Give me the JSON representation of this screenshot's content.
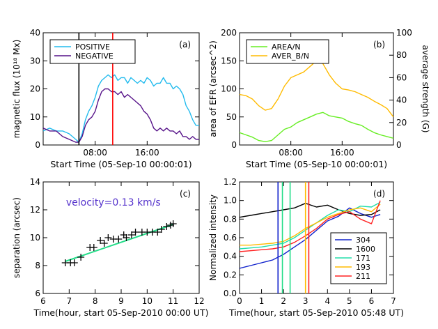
{
  "chart_data": [
    {
      "id": "a",
      "type": "line",
      "panel_label": "(a)",
      "xlabel": "Start Time (05-Sep-10 00:00:01)",
      "ylabel": "magnetic flux (10¹⁸ Mx)",
      "x_unit": "hours since 05-Sep-10 00:00:01",
      "xlim": [
        0,
        24
      ],
      "ylim": [
        0,
        40
      ],
      "xticks": [
        {
          "v": 8,
          "label": "08:00"
        },
        {
          "v": 16,
          "label": "16:00"
        }
      ],
      "yticks": [
        0,
        10,
        20,
        30,
        40
      ],
      "legend": "top-left",
      "series": [
        {
          "name": "POSITIVE",
          "color": "#22bbee",
          "x": [
            0,
            1,
            2,
            3,
            4,
            5,
            5.5,
            6,
            6.5,
            7,
            7.5,
            8,
            8.5,
            9,
            9.5,
            10,
            10.5,
            11,
            11.5,
            12,
            12.5,
            13,
            13.5,
            14,
            14.5,
            15,
            15.5,
            16,
            16.5,
            17,
            17.5,
            18,
            18.5,
            19,
            19.5,
            20,
            20.5,
            21,
            21.5,
            22,
            22.5,
            23,
            23.5,
            24
          ],
          "y": [
            5,
            6,
            5,
            5,
            4,
            2,
            1,
            4,
            9,
            12,
            14,
            17,
            21,
            23,
            24,
            25,
            24,
            25,
            23,
            24,
            24,
            22,
            24,
            23,
            22,
            23,
            22,
            24,
            23,
            21,
            22,
            22,
            24,
            22,
            22,
            20,
            21,
            20,
            18,
            14,
            12,
            9,
            7,
            7
          ]
        },
        {
          "name": "NEGATIVE",
          "color": "#551188",
          "x": [
            0,
            1,
            2,
            3,
            4,
            5,
            5.5,
            6,
            6.5,
            7,
            7.5,
            8,
            8.5,
            9,
            9.5,
            10,
            10.5,
            11,
            11.5,
            12,
            12.5,
            13,
            13.5,
            14,
            14.5,
            15,
            15.5,
            16,
            16.5,
            17,
            17.5,
            18,
            18.5,
            19,
            19.5,
            20,
            20.5,
            21,
            21.5,
            22,
            22.5,
            23,
            23.5,
            24
          ],
          "y": [
            6,
            5,
            5,
            3,
            2,
            1,
            1,
            3,
            7,
            9,
            10,
            12,
            16,
            19,
            20,
            20,
            19,
            19,
            18,
            19,
            17,
            18,
            17,
            16,
            15,
            14,
            12,
            11,
            9,
            6,
            5,
            6,
            5,
            6,
            5,
            5,
            4,
            5,
            3,
            3,
            2,
            3,
            2,
            2
          ]
        }
      ],
      "vlines": [
        {
          "x": 5.5,
          "color": "#000000"
        },
        {
          "x": 10.7,
          "color": "#ff0000"
        }
      ]
    },
    {
      "id": "b",
      "type": "line",
      "panel_label": "(b)",
      "xlabel": "Start Time (05-Sep-10 00:00:01)",
      "ylabel": "area of EFR  (arcsec^2)",
      "y2label": "average strength (G)",
      "x_unit": "hours since 05-Sep-10 00:00:01",
      "xlim": [
        0,
        24
      ],
      "ylim": [
        0,
        200
      ],
      "y2lim": [
        0,
        100
      ],
      "xticks": [
        {
          "v": 8,
          "label": "08:00"
        },
        {
          "v": 16,
          "label": "16:00"
        }
      ],
      "yticks": [
        0,
        50,
        100,
        150,
        200
      ],
      "y2ticks": [
        0,
        20,
        40,
        60,
        80,
        100
      ],
      "legend": "top-left",
      "series": [
        {
          "name": "AREA/N",
          "color": "#66ee22",
          "x": [
            0,
            1,
            2,
            3,
            4,
            5,
            6,
            7,
            8,
            9,
            10,
            11,
            12,
            13,
            14,
            15,
            16,
            17,
            18,
            19,
            20,
            21,
            22,
            23,
            24
          ],
          "y": [
            22,
            18,
            14,
            8,
            6,
            8,
            18,
            28,
            32,
            40,
            45,
            50,
            55,
            58,
            52,
            50,
            48,
            42,
            38,
            35,
            28,
            22,
            18,
            15,
            12
          ]
        },
        {
          "name": "AVER_B/N",
          "color": "#ffbb00",
          "x": [
            0,
            1,
            2,
            3,
            4,
            5,
            6,
            7,
            8,
            9,
            10,
            11,
            12,
            13,
            14,
            15,
            16,
            17,
            18,
            19,
            20,
            21,
            22,
            23,
            24
          ],
          "y": [
            90,
            88,
            82,
            70,
            62,
            65,
            82,
            105,
            120,
            125,
            130,
            140,
            150,
            145,
            125,
            110,
            100,
            98,
            95,
            90,
            85,
            78,
            72,
            65,
            50
          ]
        }
      ]
    },
    {
      "id": "c",
      "type": "scatter",
      "panel_label": "(c)",
      "annotation": "velocity=0.13 km/s",
      "annotation_color": "#5533cc",
      "xlabel": "Time(hour, start 05-Sep-2010 00:00 UT)",
      "ylabel": "separation  (arcsec)",
      "xlim": [
        6,
        12
      ],
      "ylim": [
        6,
        14
      ],
      "xticks": [
        6,
        7,
        8,
        9,
        10,
        11,
        12
      ],
      "yticks": [
        6,
        8,
        10,
        12,
        14
      ],
      "points": {
        "marker": "plus",
        "x": [
          6.85,
          7.05,
          7.2,
          7.45,
          7.8,
          7.95,
          8.2,
          8.35,
          8.5,
          8.7,
          8.9,
          9.1,
          9.2,
          9.4,
          9.55,
          9.8,
          10.0,
          10.2,
          10.4,
          10.55,
          10.75,
          10.9,
          11.0
        ],
        "y": [
          8.2,
          8.2,
          8.2,
          8.6,
          9.3,
          9.3,
          9.8,
          9.6,
          10.0,
          9.9,
          9.9,
          10.2,
          10.0,
          10.2,
          10.4,
          10.4,
          10.4,
          10.4,
          10.4,
          10.6,
          10.8,
          10.9,
          11.0
        ]
      },
      "fit": {
        "color": "#22dd88",
        "x": [
          6.85,
          11.0
        ],
        "y": [
          8.3,
          10.95
        ]
      }
    },
    {
      "id": "d",
      "type": "line",
      "panel_label": "(d)",
      "xlabel": "Time(hour, start 05-Sep-2010 05:48 UT)",
      "ylabel": "Normalized intensity",
      "xlim": [
        0,
        7
      ],
      "ylim": [
        0.0,
        1.2
      ],
      "xticks": [
        0,
        1,
        2,
        3,
        4,
        5,
        6,
        7
      ],
      "yticks": [
        {
          "v": 0.0,
          "label": "0.0"
        },
        {
          "v": 0.2,
          "label": "0.2"
        },
        {
          "v": 0.4,
          "label": "0.4"
        },
        {
          "v": 0.6,
          "label": "0.6"
        },
        {
          "v": 0.8,
          "label": "0.8"
        },
        {
          "v": 1.0,
          "label": "1.0"
        },
        {
          "v": 1.2,
          "label": "1.2"
        }
      ],
      "legend": "bottom-right",
      "series": [
        {
          "name": "304",
          "color": "#1122cc",
          "x": [
            0,
            0.5,
            1,
            1.5,
            2,
            2.5,
            3,
            3.5,
            4,
            4.5,
            5,
            5.5,
            6,
            6.4
          ],
          "y": [
            0.27,
            0.3,
            0.33,
            0.36,
            0.42,
            0.5,
            0.58,
            0.68,
            0.78,
            0.83,
            0.92,
            0.86,
            0.82,
            0.85
          ]
        },
        {
          "name": "1600",
          "color": "#000000",
          "x": [
            0,
            0.5,
            1,
            1.5,
            2,
            2.5,
            3,
            3.5,
            4,
            4.5,
            5,
            5.5,
            6,
            6.4
          ],
          "y": [
            0.82,
            0.84,
            0.86,
            0.88,
            0.9,
            0.92,
            0.97,
            0.93,
            0.95,
            0.9,
            0.86,
            0.84,
            0.85,
            0.9
          ]
        },
        {
          "name": "171",
          "color": "#22ddaa",
          "x": [
            0,
            0.5,
            1,
            1.5,
            2,
            2.5,
            3,
            3.5,
            4,
            4.5,
            5,
            5.5,
            6,
            6.4
          ],
          "y": [
            0.48,
            0.49,
            0.5,
            0.52,
            0.54,
            0.6,
            0.68,
            0.76,
            0.84,
            0.9,
            0.88,
            0.94,
            0.93,
            0.98
          ]
        },
        {
          "name": "193",
          "color": "#ffbb00",
          "x": [
            0,
            0.5,
            1,
            1.5,
            2,
            2.5,
            3,
            3.5,
            4,
            4.5,
            5,
            5.5,
            6,
            6.4
          ],
          "y": [
            0.52,
            0.52,
            0.53,
            0.54,
            0.56,
            0.62,
            0.7,
            0.76,
            0.82,
            0.86,
            0.9,
            0.92,
            0.88,
            0.96
          ]
        },
        {
          "name": "211",
          "color": "#ff2222",
          "x": [
            0,
            0.5,
            1,
            1.5,
            2,
            2.5,
            3,
            3.5,
            4,
            4.5,
            5,
            5.5,
            6,
            6.4
          ],
          "y": [
            0.45,
            0.46,
            0.47,
            0.48,
            0.5,
            0.55,
            0.62,
            0.7,
            0.8,
            0.85,
            0.88,
            0.8,
            0.75,
            1.0
          ]
        }
      ],
      "vlines": [
        {
          "x": 1.75,
          "color": "#1122cc"
        },
        {
          "x": 1.95,
          "color": "#22dd88"
        },
        {
          "x": 2.3,
          "color": "#22dd88"
        },
        {
          "x": 3.0,
          "color": "#ffbb00"
        },
        {
          "x": 3.15,
          "color": "#ff2222"
        }
      ]
    }
  ]
}
